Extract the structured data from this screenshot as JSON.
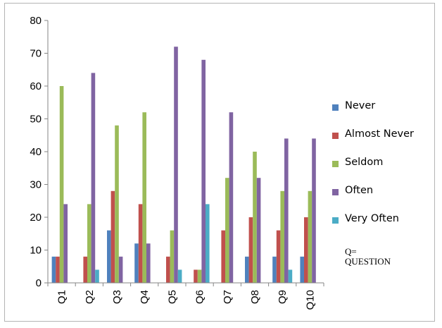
{
  "chart_data": {
    "type": "bar",
    "categories": [
      "Q1",
      "Q2",
      "Q3",
      "Q4",
      "Q5",
      "Q6",
      "Q7",
      "Q8",
      "Q9",
      "Q10"
    ],
    "series": [
      {
        "name": "Never",
        "color": "#4f81bd",
        "values": [
          8,
          0,
          16,
          12,
          0,
          0,
          0,
          8,
          8,
          8
        ]
      },
      {
        "name": "Almost Never",
        "color": "#c0504d",
        "values": [
          8,
          8,
          28,
          24,
          8,
          4,
          16,
          20,
          16,
          20
        ]
      },
      {
        "name": "Seldom",
        "color": "#9bbb59",
        "values": [
          60,
          24,
          48,
          52,
          16,
          4,
          32,
          40,
          28,
          28
        ]
      },
      {
        "name": "Often",
        "color": "#8064a2",
        "values": [
          24,
          64,
          8,
          12,
          72,
          68,
          52,
          32,
          44,
          44
        ]
      },
      {
        "name": "Very Often",
        "color": "#4bacc6",
        "values": [
          0,
          4,
          0,
          0,
          4,
          24,
          0,
          0,
          4,
          0
        ]
      }
    ],
    "ylim": [
      0,
      80
    ],
    "yticks": [
      "0",
      "10",
      "20",
      "30",
      "40",
      "50",
      "60",
      "70",
      "80"
    ],
    "grid": false,
    "legend_position": "right",
    "note": [
      "Q=",
      "QUESTION"
    ]
  }
}
